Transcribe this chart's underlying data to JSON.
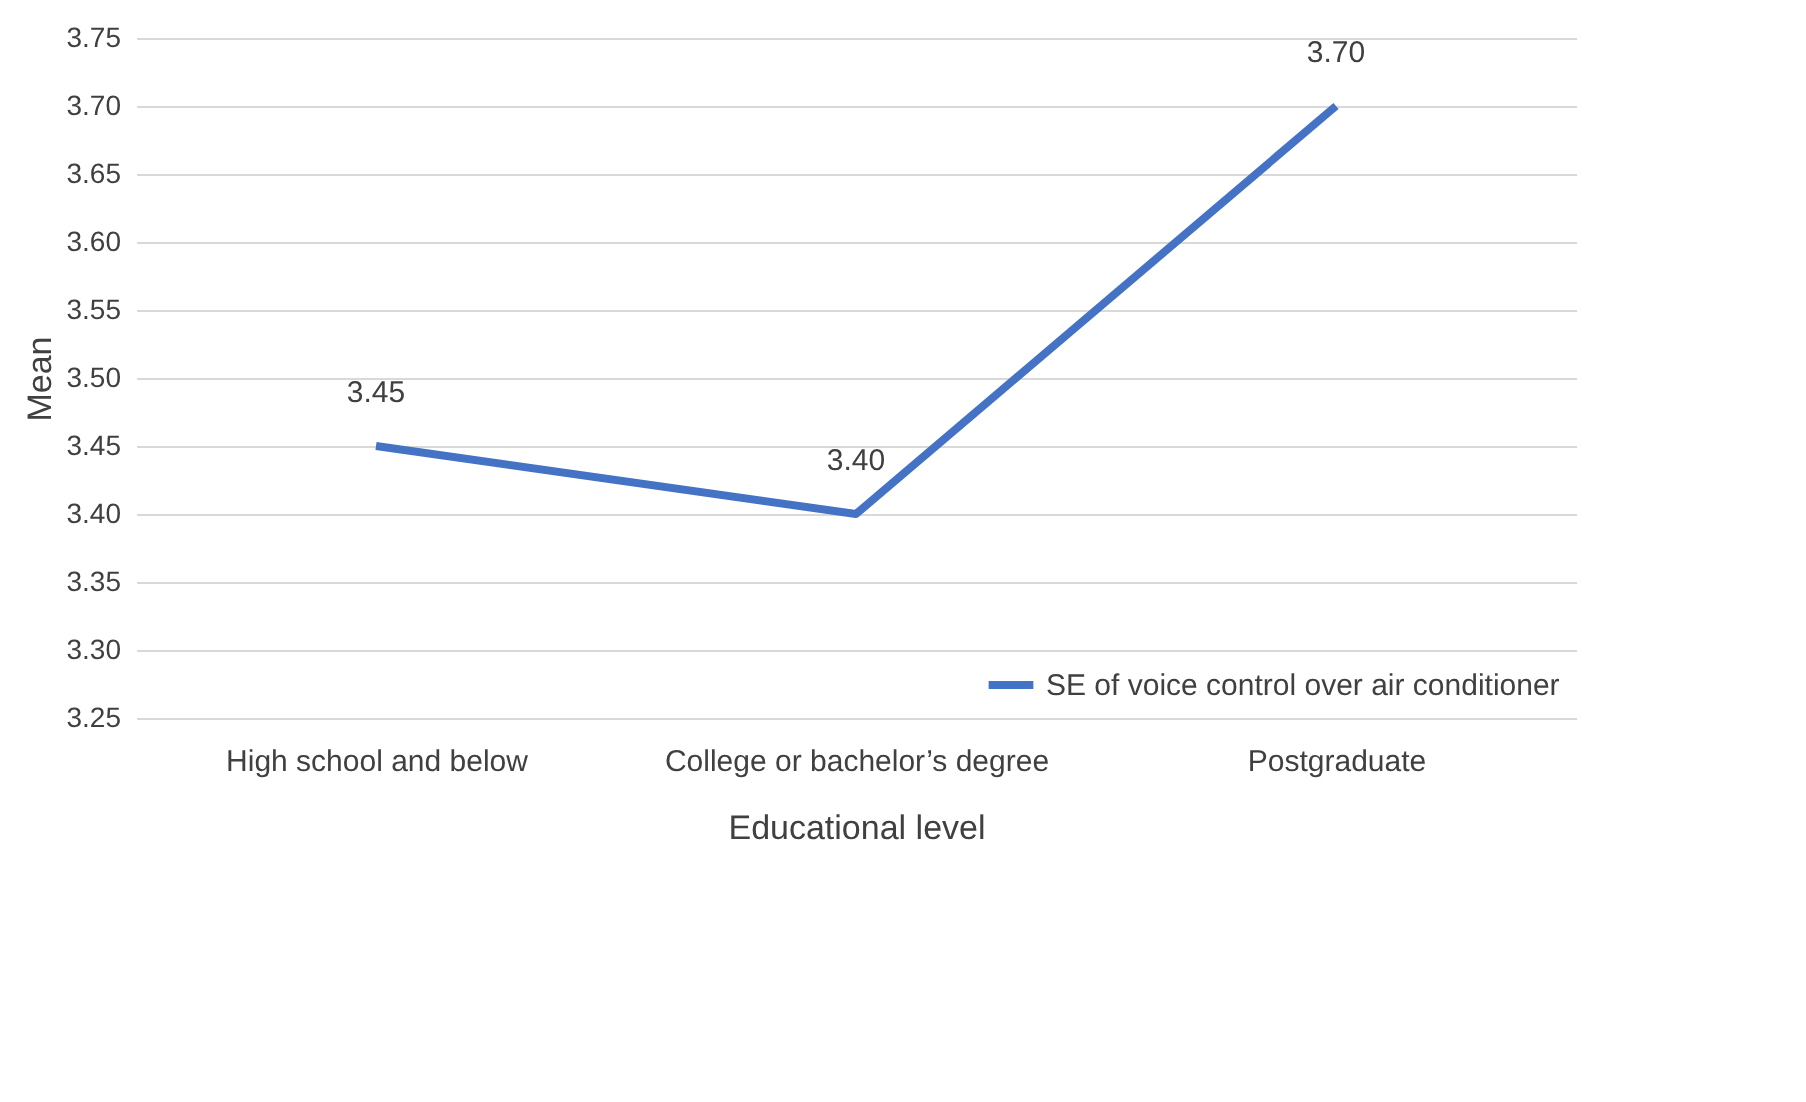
{
  "chart_data": {
    "type": "line",
    "xlabel": "Educational level",
    "ylabel": "Mean",
    "categories": [
      "High school and below",
      "College or bachelor’s degree",
      "Postgraduate"
    ],
    "series": [
      {
        "name": "SE of voice control over air conditioner",
        "color": "#4472c4",
        "values": [
          3.45,
          3.4,
          3.7
        ],
        "value_labels": [
          "3.45",
          "3.40",
          "3.70"
        ]
      }
    ],
    "ylim": [
      3.25,
      3.75
    ],
    "yticks": [
      {
        "value": 3.25,
        "label": "3.25"
      },
      {
        "value": 3.3,
        "label": "3.30"
      },
      {
        "value": 3.35,
        "label": "3.35"
      },
      {
        "value": 3.4,
        "label": "3.40"
      },
      {
        "value": 3.45,
        "label": "3.45"
      },
      {
        "value": 3.5,
        "label": "3.50"
      },
      {
        "value": 3.55,
        "label": "3.55"
      },
      {
        "value": 3.6,
        "label": "3.60"
      },
      {
        "value": 3.65,
        "label": "3.65"
      },
      {
        "value": 3.7,
        "label": "3.70"
      },
      {
        "value": 3.75,
        "label": "3.75"
      }
    ],
    "grid": "y",
    "legend": "bottom right",
    "marker": "none",
    "line_style": "solid"
  }
}
